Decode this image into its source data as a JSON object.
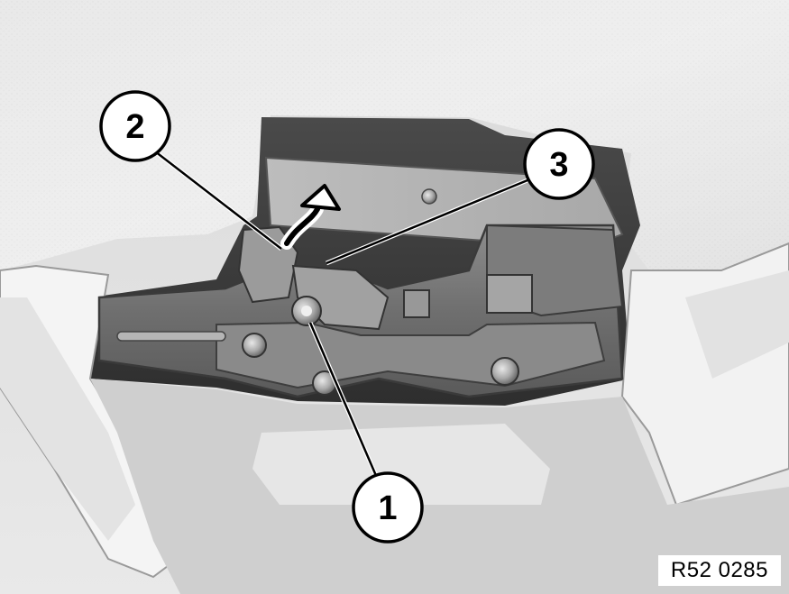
{
  "figure": {
    "reference_code": "R52 0285",
    "callouts": [
      {
        "number": "1"
      },
      {
        "number": "2"
      },
      {
        "number": "3"
      }
    ],
    "palette": {
      "callout_fill": "#ffffff",
      "callout_stroke": "#000000",
      "photo_tone": "grayscale"
    }
  }
}
